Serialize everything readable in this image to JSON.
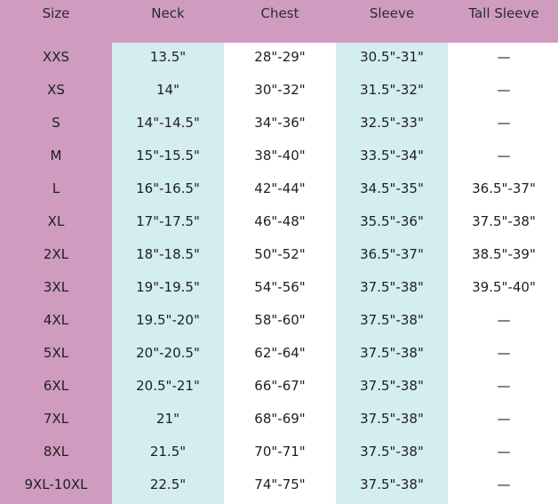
{
  "table": {
    "header": [
      "Size",
      "Neck",
      "Chest",
      "Sleeve",
      "Tall Sleeve"
    ],
    "rows": [
      [
        "XXS",
        "13.5\"",
        "28\"-29\"",
        "30.5\"-31\"",
        "—"
      ],
      [
        "XS",
        "14\"",
        "30\"-32\"",
        "31.5\"-32\"",
        "—"
      ],
      [
        "S",
        "14\"-14.5\"",
        "34\"-36\"",
        "32.5\"-33\"",
        "—"
      ],
      [
        "M",
        "15\"-15.5\"",
        "38\"-40\"",
        "33.5\"-34\"",
        "—"
      ],
      [
        "L",
        "16\"-16.5\"",
        "42\"-44\"",
        "34.5\"-35\"",
        "36.5\"-37\""
      ],
      [
        "XL",
        "17\"-17.5\"",
        "46\"-48\"",
        "35.5\"-36\"",
        "37.5\"-38\""
      ],
      [
        "2XL",
        "18\"-18.5\"",
        "50\"-52\"",
        "36.5\"-37\"",
        "38.5\"-39\""
      ],
      [
        "3XL",
        "19\"-19.5\"",
        "54\"-56\"",
        "37.5\"-38\"",
        "39.5\"-40\""
      ],
      [
        "4XL",
        "19.5\"-20\"",
        "58\"-60\"",
        "37.5\"-38\"",
        "—"
      ],
      [
        "5XL",
        "20\"-20.5\"",
        "62\"-64\"",
        "37.5\"-38\"",
        "—"
      ],
      [
        "6XL",
        "20.5\"-21\"",
        "66\"-67\"",
        "37.5\"-38\"",
        "—"
      ],
      [
        "7XL",
        "21\"",
        "68\"-69\"",
        "37.5\"-38\"",
        "—"
      ],
      [
        "8XL",
        "21.5\"",
        "70\"-71\"",
        "37.5\"-38\"",
        "—"
      ],
      [
        "9XL-10XL",
        "22.5\"",
        "74\"-75\"",
        "37.5\"-38\"",
        "—"
      ]
    ]
  }
}
